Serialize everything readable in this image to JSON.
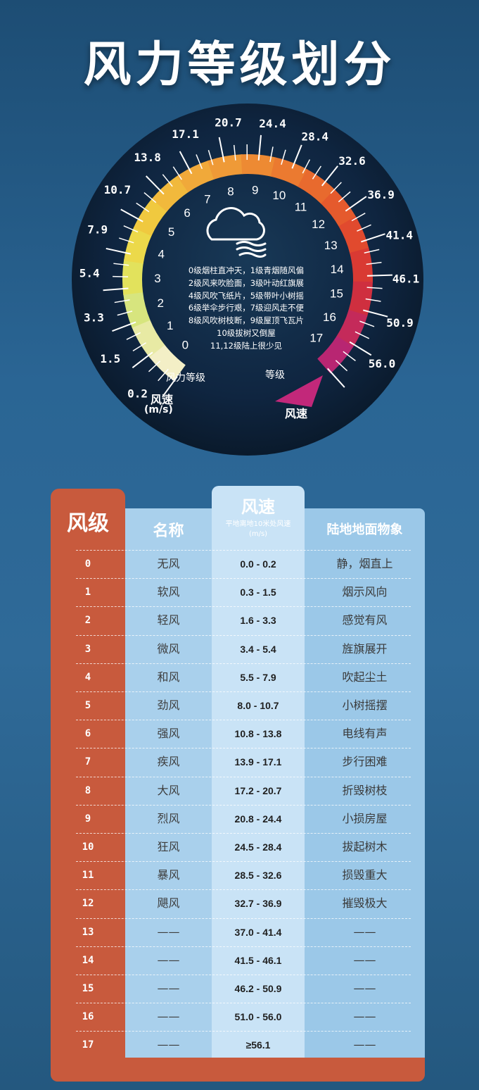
{
  "title": "风力等级划分",
  "gauge": {
    "speed_ticks": [
      "0.2",
      "1.5",
      "3.3",
      "5.4",
      "7.9",
      "10.7",
      "13.8",
      "17.1",
      "20.7",
      "24.4",
      "28.4",
      "32.6",
      "36.9",
      "41.4",
      "46.1",
      "50.9",
      "56.0"
    ],
    "level_ticks": [
      "0",
      "1",
      "2",
      "3",
      "4",
      "5",
      "6",
      "7",
      "8",
      "9",
      "10",
      "11",
      "12",
      "13",
      "14",
      "15",
      "16",
      "17"
    ],
    "level_label": "风力等级",
    "speed_label_left": "风速",
    "speed_unit": "(m/s)",
    "level_label_right": "等级",
    "speed_label_right": "风速",
    "descriptions": [
      "0级烟柱直冲天，1级青烟随风偏",
      "2级风来吹脸面，3级叶动红旗展",
      "4级风吹飞纸片，5级带叶小树摇",
      "6级举伞步行艰，7级迎风走不便",
      "8级风吹树枝断，9级屋顶飞瓦片",
      "10级拔树又倒屋",
      "11,12级陆上很少见"
    ],
    "icon": "cloud-wind-icon"
  },
  "table": {
    "headers": {
      "level": "风级",
      "name": "名称",
      "speed": "风速",
      "speed_sub": "平地离地10米处风速",
      "speed_unit": "(m/s)",
      "land": "陆地地面物象"
    },
    "rows": [
      {
        "level": "0",
        "name": "无风",
        "speed": "0.0 - 0.2",
        "land": "静，烟直上"
      },
      {
        "level": "1",
        "name": "软风",
        "speed": "0.3 - 1.5",
        "land": "烟示风向"
      },
      {
        "level": "2",
        "name": "轻风",
        "speed": "1.6 - 3.3",
        "land": "感觉有风"
      },
      {
        "level": "3",
        "name": "微风",
        "speed": "3.4 - 5.4",
        "land": "旌旗展开"
      },
      {
        "level": "4",
        "name": "和风",
        "speed": "5.5 - 7.9",
        "land": "吹起尘土"
      },
      {
        "level": "5",
        "name": "劲风",
        "speed": "8.0 - 10.7",
        "land": "小树摇摆"
      },
      {
        "level": "6",
        "name": "强风",
        "speed": "10.8 - 13.8",
        "land": "电线有声"
      },
      {
        "level": "7",
        "name": "疾风",
        "speed": "13.9 - 17.1",
        "land": "步行困难"
      },
      {
        "level": "8",
        "name": "大风",
        "speed": "17.2 - 20.7",
        "land": "折毁树枝"
      },
      {
        "level": "9",
        "name": "烈风",
        "speed": "20.8 - 24.4",
        "land": "小损房屋"
      },
      {
        "level": "10",
        "name": "狂风",
        "speed": "24.5 - 28.4",
        "land": "拔起树木"
      },
      {
        "level": "11",
        "name": "暴风",
        "speed": "28.5 - 32.6",
        "land": "损毁重大"
      },
      {
        "level": "12",
        "name": "飓风",
        "speed": "32.7 - 36.9",
        "land": "摧毁极大"
      },
      {
        "level": "13",
        "name": "——",
        "speed": "37.0 - 41.4",
        "land": "——"
      },
      {
        "level": "14",
        "name": "——",
        "speed": "41.5 - 46.1",
        "land": "——"
      },
      {
        "level": "15",
        "name": "——",
        "speed": "46.2 - 50.9",
        "land": "——"
      },
      {
        "level": "16",
        "name": "——",
        "speed": "51.0 - 56.0",
        "land": "——"
      },
      {
        "level": "17",
        "name": "——",
        "speed": "≥56.1",
        "land": "——"
      }
    ]
  },
  "colors": {
    "background": "#2a6594",
    "level_column": "#c85a3d",
    "name_column": "#a9d0ec",
    "speed_column": "#c9e3f6",
    "land_column": "#9bc8e8",
    "gauge_dark": "#0d1e33"
  }
}
